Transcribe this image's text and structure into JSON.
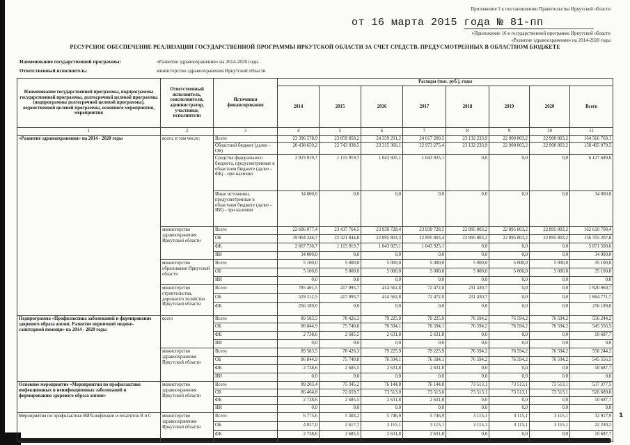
{
  "header": {
    "appendix_line": "Приложение 2 к постановлению Правительства Иркутской области",
    "decree_prefix": "от 16 марта 2015 ",
    "decree_underlined": "года № 81-пп",
    "appendix_line2": "«Приложение 16 к государственной программе Иркутской области",
    "appendix_line3": "«Развитие здравоохранения»  на 2014-2020 годы",
    "title": "РЕСУРСНОЕ ОБЕСПЕЧЕНИЕ РЕАЛИЗАЦИИ ГОСУДАРСТВЕННОЙ ПРОГРАММЫ ИРКУТСКОЙ ОБЛАСТИ ЗА СЧЕТ СРЕДСТВ, ПРЕДУСМОТРЕННЫХ В ОБЛАСТНОМ БЮДЖЕТЕ"
  },
  "meta": {
    "program_label": "Наименование государственной программы:",
    "program_value": "«Развитие здравоохранения» на 2014-2020 годы",
    "executor_label": "Ответственный исполнитель:",
    "executor_value": "министерство здравоохранения Иркутской области"
  },
  "table": {
    "header": {
      "col1": "Наименование государственной программы, подпрограммы государственной программы, долгосрочной целевой программы (подпрограммы долгосрочной целевой программы), ведомственной целевой программы, основного мероприятия, мероприятия",
      "col2": "Ответственный исполнитель, соисполнители, администратор, участники, исполнители",
      "col3": "Источники финансирования",
      "expenses": "Расходы (тыс. руб.), годы",
      "years": [
        "2014",
        "2015",
        "2016",
        "2017",
        "2018",
        "2019",
        "2020",
        "Всего"
      ],
      "numbers": [
        "1",
        "2",
        "3",
        "4",
        "5",
        "6",
        "7",
        "8",
        "9",
        "10",
        "11"
      ]
    },
    "sections": [
      {
        "name": "«Развитие здравоохранения» на 2014 - 2020 годы",
        "bold": true,
        "groups": [
          {
            "executor": "всего, в том числе:",
            "rows": [
              {
                "source": "Всего",
                "h": 9,
                "values": [
                  "23 396 578,9",
                  "23 859 858,2",
                  "24 359 291,2",
                  "24 017 200,5",
                  "23 132 233,9",
                  "22 900 803,2",
                  "22 900 803,2",
                  "164 566 769,1"
                ]
              },
              {
                "source": "Областной бюджет (далее - ОБ)",
                "h": 17,
                "values": [
                  "20 438 659,2",
                  "22 743 938,5",
                  "23 315 366,1",
                  "22 973 275,4",
                  "23 132 233,9",
                  "22 900 803,2",
                  "22 900 803,2",
                  "158 405 079,5"
                ]
              },
              {
                "source": "Средства федерального бюджета, предусмотренные в областном бюджете (далее - ФБ) - при наличии",
                "h": 52,
                "values": [
                  "2 923 919,7",
                  "1 115 919,7",
                  "1 043 925,1",
                  "1 043 925,1",
                  "0,0",
                  "0,0",
                  "0,0",
                  "6 127 689,6"
                ]
              },
              {
                "source": "Иные источники, предусмотренные в областном бюджете (далее - ИИ) - при наличии",
                "h": 51,
                "values": [
                  "34 000,0",
                  "0,0",
                  "0,0",
                  "0,0",
                  "0,0",
                  "0,0",
                  "0,0",
                  "34 000,0"
                ]
              }
            ]
          },
          {
            "executor": "министерство здравоохранения Иркутской области",
            "rows": [
              {
                "source": "Всего",
                "h": 12,
                "values": [
                  "22 606 077,4",
                  "23 437 764,5",
                  "23 939 728,4",
                  "23 939 728,5",
                  "22 895 803,2",
                  "22 895 803,2",
                  "22 895 803,2",
                  "162 610 708,4"
                ]
              },
              {
                "source": "ОБ",
                "h": 12,
                "values": [
                  "19 904 346,7",
                  "22 321 844,8",
                  "22 895 803,3",
                  "22 895 803,4",
                  "22 895 803,2",
                  "22 895 803,2",
                  "22 895 803,2",
                  "156 705 207,8"
                ]
              },
              {
                "source": "ФБ",
                "h": 12,
                "values": [
                  "2 667 730,7",
                  "1 115 919,7",
                  "1 043 925,1",
                  "1 043 925,1",
                  "0,0",
                  "0,0",
                  "0,0",
                  "5 871 500,6"
                ]
              },
              {
                "source": "ИИ",
                "h": 12,
                "values": [
                  "34 000,0",
                  "0,0",
                  "0,0",
                  "0,0",
                  "0,0",
                  "0,0",
                  "0,0",
                  "34 000,0"
                ]
              }
            ]
          },
          {
            "executor": "министерство образования Иркутской области",
            "rows": [
              {
                "source": "Всего",
                "h": 12,
                "values": [
                  "5 100,0",
                  "5 000,0",
                  "5 000,0",
                  "5 000,0",
                  "5 000,0",
                  "5 000,0",
                  "5 000,0",
                  "35 100,0"
                ]
              },
              {
                "source": "ОБ",
                "h": 12,
                "values": [
                  "5 100,0",
                  "5 000,0",
                  "5 000,0",
                  "5 000,0",
                  "5 000,0",
                  "5 000,0",
                  "5 000,0",
                  "35 100,0"
                ]
              },
              {
                "source": "ИИ",
                "h": 12,
                "values": [
                  "0,0",
                  "0,0",
                  "0,0",
                  "0,0",
                  "0,0",
                  "0,0",
                  "0,0",
                  "0,0"
                ]
              }
            ]
          },
          {
            "executor": "министерство строительства, дорожного хозяйства Иркутской области",
            "rows": [
              {
                "source": "Всего",
                "h": 13,
                "values": [
                  "785 401,5",
                  "417 093,7",
                  "414 562,8",
                  "72 472,0",
                  "231 430,7",
                  "0,0",
                  "0,0",
                  "1 920 960,7"
                ]
              },
              {
                "source": "ОБ",
                "h": 13,
                "values": [
                  "529 212,5",
                  "417 093,7",
                  "414 562,8",
                  "72 472,0",
                  "231 430,7",
                  "0,0",
                  "0,0",
                  "1 664 771,7"
                ]
              },
              {
                "source": "ФБ",
                "h": 18,
                "values": [
                  "256 189,0",
                  "0,0",
                  "0,0",
                  "0,0",
                  "0,0",
                  "0,0",
                  "0,0",
                  "256 189,0"
                ]
              }
            ]
          }
        ]
      },
      {
        "name": "Подпрограмма «Профилактика заболеваний и формирование здорового образа жизни. Развитие первичной медико-санитарной помощи» на 2014 - 2020 годы",
        "bold": true,
        "groups": [
          {
            "executor": "всего",
            "rows": [
              {
                "source": "Всего",
                "h": 11,
                "values": [
                  "89 583,5",
                  "78 426,3",
                  "79 225,9",
                  "79 225,9",
                  "76 594,2",
                  "76 594,2",
                  "76 594,2",
                  "556 244,2"
                ]
              },
              {
                "source": "ОБ",
                "h": 12,
                "values": [
                  "86 844,9",
                  "75 740,8",
                  "76 594,1",
                  "76 594,1",
                  "76 594,2",
                  "76 594,2",
                  "76 594,2",
                  "545 556,5"
                ]
              },
              {
                "source": "ФБ",
                "h": 12,
                "values": [
                  "2 738,6",
                  "2 685,5",
                  "2 631,8",
                  "2 631,8",
                  "0,0",
                  "0,0",
                  "0,0",
                  "10 687,7"
                ]
              },
              {
                "source": "ИИ",
                "h": 12,
                "values": [
                  "0,0",
                  "0,0",
                  "0,0",
                  "0,0",
                  "0,0",
                  "0,0",
                  "0,0",
                  "0,0"
                ]
              }
            ]
          },
          {
            "executor": "министерство здравоохранения Иркутской области",
            "rows": [
              {
                "source": "Всего",
                "h": 12,
                "values": [
                  "89 583,5",
                  "78 426,3",
                  "79 225,9",
                  "79 225,9",
                  "76 594,2",
                  "76 594,2",
                  "76 594,2",
                  "556 244,2"
                ]
              },
              {
                "source": "ОБ",
                "h": 12,
                "values": [
                  "86 844,9",
                  "75 740,8",
                  "76 594,1",
                  "76 594,1",
                  "76 594,2",
                  "76 594,2",
                  "76 594,2",
                  "545 556,5"
                ]
              },
              {
                "source": "ФБ",
                "h": 12,
                "values": [
                  "2 738,6",
                  "2 685,5",
                  "2 631,8",
                  "2 631,8",
                  "0,0",
                  "0,0",
                  "0,0",
                  "10 687,7"
                ]
              },
              {
                "source": "ИИ",
                "h": 12,
                "values": [
                  "0,0",
                  "0,0",
                  "0,0",
                  "0,0",
                  "0,0",
                  "0,0",
                  "0,0",
                  "0,0"
                ]
              }
            ]
          }
        ]
      },
      {
        "name": "Основное мероприятие «Мероприятия по профилактике инфекционных и неинфекционных заболеваний и формированию здорового образа жизни»",
        "bold": true,
        "groups": [
          {
            "executor": "министерство здравоохранения Иркутской области",
            "rows": [
              {
                "source": "Всего",
                "h": 11,
                "values": [
                  "89 203,4",
                  "75 345,2",
                  "76 144,8",
                  "76 144,8",
                  "73 513,1",
                  "73 513,1",
                  "73 513,1",
                  "537 377,5"
                ]
              },
              {
                "source": "ОБ",
                "h": 11,
                "values": [
                  "86 464,8",
                  "72 659,7",
                  "73 513,0",
                  "73 513,0",
                  "73 513,1",
                  "73 513,1",
                  "73 513,1",
                  "526 689,8"
                ]
              },
              {
                "source": "ФБ",
                "h": 11,
                "values": [
                  "2 738,6",
                  "2 685,5",
                  "2 631,8",
                  "2 631,8",
                  "0,0",
                  "0,0",
                  "0,0",
                  "10 687,7"
                ]
              },
              {
                "source": "ИИ",
                "h": 12,
                "values": [
                  "0,0",
                  "0,0",
                  "0,0",
                  "0,0",
                  "0,0",
                  "0,0",
                  "0,0",
                  "0,0"
                ]
              }
            ]
          }
        ]
      },
      {
        "name": "Мероприятия по профилактике ВИЧ-инфекции и гепатитов В и С",
        "bold": false,
        "groups": [
          {
            "executor": "министерство здравоохранения Иркутской области",
            "rows": [
              {
                "source": "Всего",
                "h": 13,
                "values": [
                  "6 775,6",
                  "5 303,2",
                  "5 746,9",
                  "5 746,9",
                  "3 115,1",
                  "3 115,1",
                  "3 115,1",
                  "32 917,9"
                ]
              },
              {
                "source": "ОБ",
                "h": 13,
                "values": [
                  "4 037,0",
                  "2 617,7",
                  "3 115,1",
                  "3 115,1",
                  "3 115,1",
                  "3 115,1",
                  "3 115,1",
                  "22 230,2"
                ]
              },
              {
                "source": "ФБ",
                "h": 16,
                "values": [
                  "2 738,6",
                  "2 685,5",
                  "2 631,8",
                  "2 631,8",
                  "0,0",
                  "0,0",
                  "0,0",
                  "10 687,7"
                ]
              }
            ]
          }
        ]
      }
    ]
  },
  "footer": {
    "page_number": "1"
  }
}
